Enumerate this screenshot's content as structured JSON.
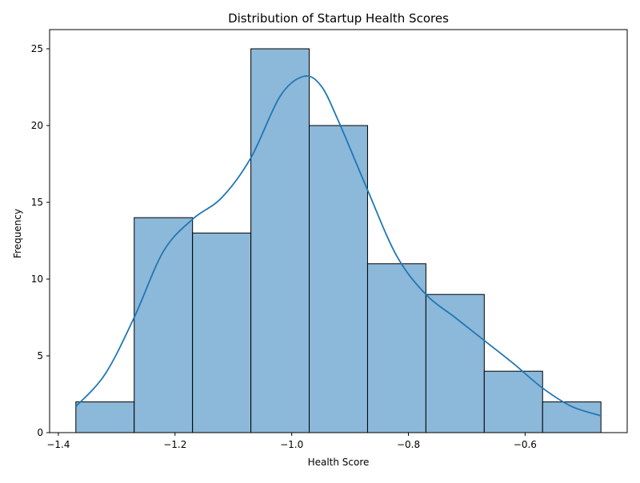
{
  "chart_data": {
    "type": "bar",
    "subtype": "histogram",
    "title": "Distribution of Startup Health Scores",
    "xlabel": "Health Score",
    "ylabel": "Frequency",
    "bin_edges": [
      -1.37,
      -1.27,
      -1.17,
      -1.07,
      -0.97,
      -0.87,
      -0.77,
      -0.67,
      -0.57,
      -0.47
    ],
    "counts": [
      2,
      14,
      13,
      25,
      20,
      11,
      9,
      4,
      2
    ],
    "xlim": [
      -1.415,
      -0.425
    ],
    "ylim": [
      0,
      26.25
    ],
    "xticks": [
      -1.4,
      -1.2,
      -1.0,
      -0.8,
      -0.6
    ],
    "xtick_labels": [
      "−1.4",
      "−1.2",
      "−1.0",
      "−0.8",
      "−0.6"
    ],
    "yticks": [
      0,
      5,
      10,
      15,
      20,
      25
    ],
    "ytick_labels": [
      "0",
      "5",
      "10",
      "15",
      "20",
      "25"
    ],
    "kde": {
      "x": [
        -1.37,
        -1.32,
        -1.27,
        -1.22,
        -1.17,
        -1.12,
        -1.07,
        -1.02,
        -0.98,
        -0.95,
        -0.92,
        -0.87,
        -0.82,
        -0.77,
        -0.72,
        -0.67,
        -0.62,
        -0.57,
        -0.52,
        -0.47
      ],
      "y": [
        1.7,
        3.8,
        7.5,
        11.8,
        13.9,
        15.3,
        17.9,
        21.9,
        23.2,
        22.6,
        20.3,
        15.8,
        11.5,
        9.0,
        7.5,
        6.0,
        4.5,
        2.9,
        1.7,
        1.1
      ]
    },
    "colors": {
      "bar_fill": "#8cb8da",
      "bar_stroke": "#000000",
      "kde_line": "#1f77b4",
      "axis": "#000000"
    },
    "grid": false,
    "legend": "none"
  }
}
